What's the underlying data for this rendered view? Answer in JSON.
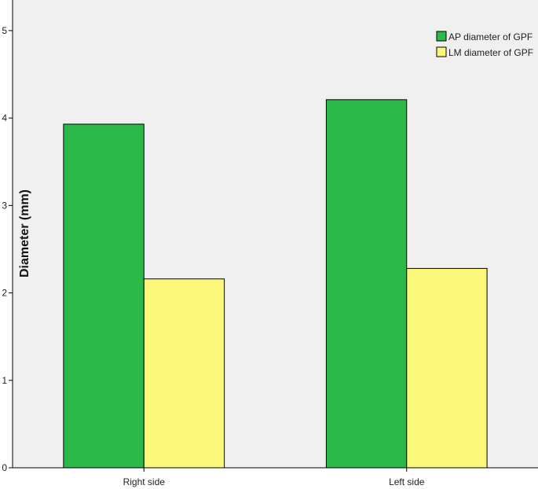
{
  "chart_data": {
    "type": "bar",
    "categories": [
      "Right side",
      "Left side"
    ],
    "series": [
      {
        "name": "AP diameter of GPF",
        "values": [
          3.93,
          4.21
        ],
        "color": "#2db84a"
      },
      {
        "name": "LM diameter of GPF",
        "values": [
          2.16,
          2.28
        ],
        "color": "#fbf77b"
      }
    ],
    "ylabel": "Diameter (mm)",
    "xlabel": "",
    "ylim": [
      0,
      5.35
    ],
    "yticks": [
      0,
      1,
      2,
      3,
      4,
      5
    ],
    "legend_position": "top-right",
    "plot_background": "#f0f0f0",
    "grid": false
  }
}
